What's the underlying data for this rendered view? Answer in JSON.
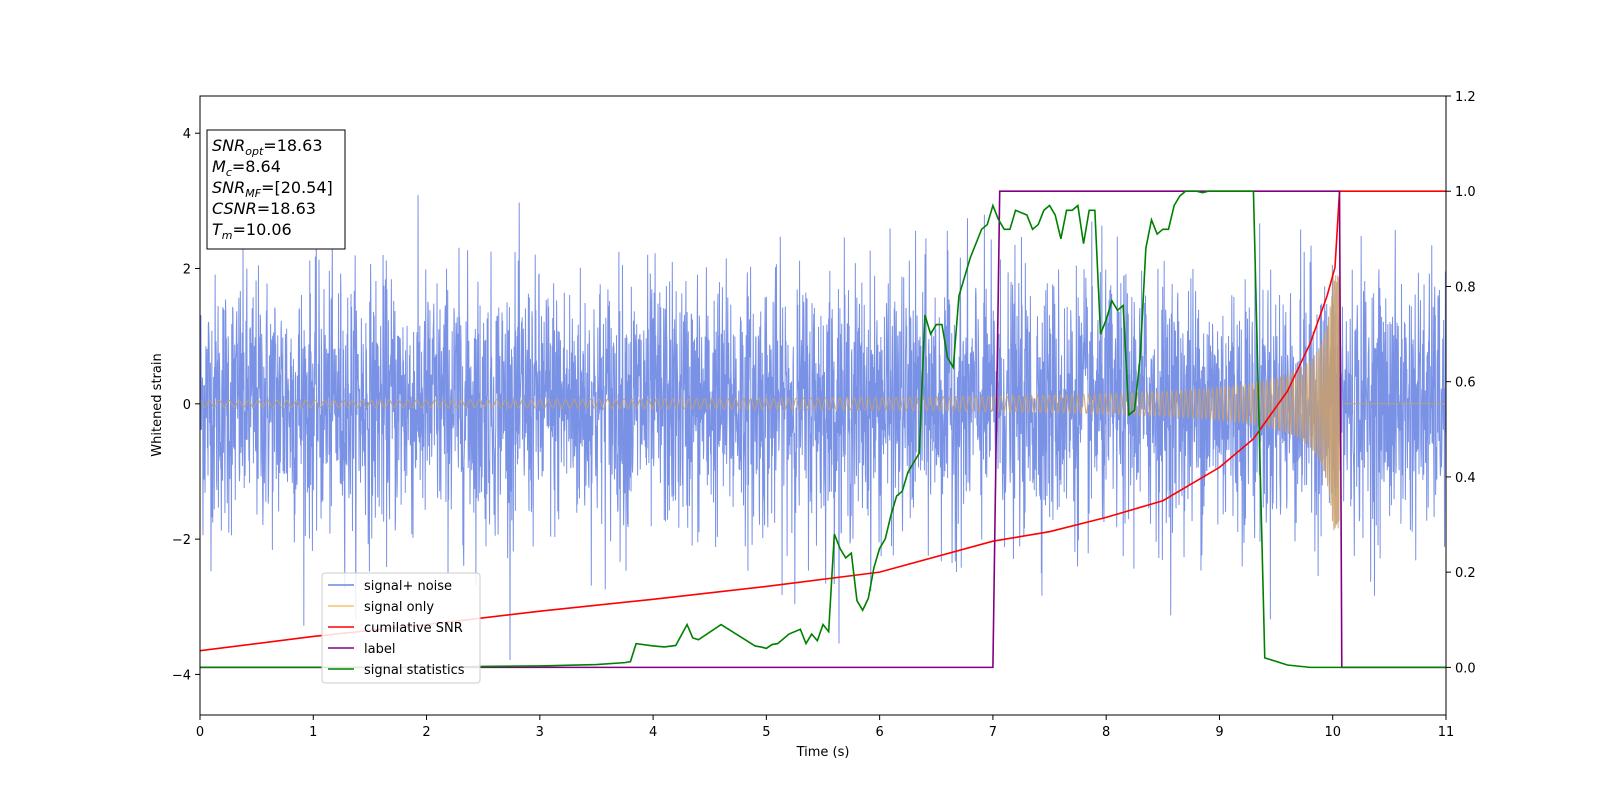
{
  "chart_data": {
    "type": "line",
    "xlabel": "Time (s)",
    "ylabel": "Whitened strain",
    "xlim": [
      0,
      11
    ],
    "ylim": [
      -4.6,
      4.55
    ],
    "y2lim": [
      -0.1,
      1.2
    ],
    "x_ticks": [
      0,
      1,
      2,
      3,
      4,
      5,
      6,
      7,
      8,
      9,
      10,
      11
    ],
    "y_ticks": [
      -4,
      -2,
      0,
      2,
      4
    ],
    "y2_ticks": [
      0.0,
      0.2,
      0.4,
      0.6,
      0.8,
      1.0,
      1.2
    ],
    "legend": {
      "placement": "lower-left",
      "entries": [
        {
          "label": "signal+ noise",
          "color": "#6b86e3"
        },
        {
          "label": "signal only",
          "color": "#f5c06b"
        },
        {
          "label": "cumilative SNR",
          "color": "#ff0000"
        },
        {
          "label": "label",
          "color": "#800080"
        },
        {
          "label": "signal statistics",
          "color": "#008000"
        }
      ]
    },
    "annotation": {
      "lines": [
        {
          "main": "SNR",
          "sub": "opt",
          "rest": "=18.63"
        },
        {
          "main": "M",
          "sub": "c",
          "rest": "=8.64"
        },
        {
          "main": "SNR",
          "sub": "MF",
          "rest": "=[20.54]"
        },
        {
          "main": "CSNR",
          "sub": "",
          "rest": "=18.63"
        },
        {
          "main": "T",
          "sub": "m",
          "rest": "=10.06"
        }
      ]
    },
    "series": [
      {
        "name": "signal+ noise",
        "axis": "left",
        "color": "#6b86e3",
        "style": "noise",
        "x_range": [
          0,
          11
        ],
        "typical_envelope": [
          -2.4,
          2.5
        ],
        "spike_range": [
          -4.2,
          4.15
        ]
      },
      {
        "name": "signal only",
        "axis": "left",
        "color": "#c8a070",
        "style": "chirp",
        "x_range": [
          0,
          10.06
        ],
        "amplitude_at_start": 0.05,
        "peak_amplitude": 1.9,
        "merger_time": 10.06,
        "flat_after": 0
      },
      {
        "name": "cumilative SNR",
        "axis": "right",
        "color": "#ff0000",
        "x": [
          0,
          1,
          2,
          3,
          4,
          5,
          6,
          7,
          7.5,
          8,
          8.5,
          9,
          9.3,
          9.6,
          9.8,
          9.95,
          10.02,
          10.06,
          11
        ],
        "y": [
          0.035,
          0.065,
          0.09,
          0.118,
          0.143,
          0.17,
          0.2,
          0.265,
          0.285,
          0.315,
          0.35,
          0.42,
          0.48,
          0.58,
          0.68,
          0.78,
          0.84,
          1.0,
          1.0
        ]
      },
      {
        "name": "label",
        "axis": "right",
        "color": "#800080",
        "x": [
          0,
          7.0,
          7.06,
          10.06,
          10.08,
          11
        ],
        "y": [
          0,
          0,
          1.0,
          1.0,
          0,
          0
        ]
      },
      {
        "name": "signal statistics",
        "axis": "right",
        "color": "#008000",
        "x": [
          0,
          1,
          2,
          2.5,
          3,
          3.5,
          3.75,
          3.8,
          3.85,
          4,
          4.1,
          4.2,
          4.3,
          4.35,
          4.4,
          4.6,
          4.8,
          4.9,
          4.95,
          5,
          5.05,
          5.1,
          5.2,
          5.3,
          5.35,
          5.4,
          5.45,
          5.5,
          5.55,
          5.6,
          5.65,
          5.7,
          5.75,
          5.8,
          5.85,
          5.9,
          5.95,
          6.0,
          6.05,
          6.1,
          6.15,
          6.2,
          6.25,
          6.3,
          6.35,
          6.4,
          6.45,
          6.5,
          6.55,
          6.6,
          6.65,
          6.7,
          6.8,
          6.9,
          6.95,
          7.0,
          7.05,
          7.1,
          7.15,
          7.2,
          7.3,
          7.35,
          7.4,
          7.45,
          7.5,
          7.55,
          7.6,
          7.65,
          7.7,
          7.75,
          7.8,
          7.85,
          7.9,
          7.95,
          8.0,
          8.05,
          8.1,
          8.15,
          8.2,
          8.25,
          8.3,
          8.35,
          8.4,
          8.45,
          8.5,
          8.55,
          8.6,
          8.65,
          8.7,
          8.75,
          8.8,
          8.85,
          8.9,
          8.95,
          9.0,
          9.1,
          9.2,
          9.3,
          9.4,
          9.6,
          9.8,
          9.95,
          10.0,
          10.05,
          10.1,
          10.15,
          10.2,
          10.3,
          11
        ],
        "y": [
          0.0,
          0.0,
          0.0,
          0.002,
          0.003,
          0.006,
          0.01,
          0.012,
          0.05,
          0.045,
          0.043,
          0.046,
          0.09,
          0.062,
          0.058,
          0.09,
          0.06,
          0.045,
          0.043,
          0.04,
          0.048,
          0.05,
          0.07,
          0.08,
          0.05,
          0.07,
          0.056,
          0.09,
          0.075,
          0.28,
          0.25,
          0.23,
          0.24,
          0.14,
          0.12,
          0.145,
          0.21,
          0.25,
          0.27,
          0.32,
          0.36,
          0.37,
          0.41,
          0.43,
          0.45,
          0.74,
          0.7,
          0.72,
          0.72,
          0.65,
          0.63,
          0.78,
          0.86,
          0.92,
          0.93,
          0.97,
          0.94,
          0.92,
          0.92,
          0.96,
          0.95,
          0.92,
          0.93,
          0.96,
          0.97,
          0.95,
          0.9,
          0.96,
          0.96,
          0.97,
          0.89,
          0.96,
          0.96,
          0.7,
          0.73,
          0.77,
          0.75,
          0.76,
          0.53,
          0.54,
          0.65,
          0.88,
          0.94,
          0.91,
          0.92,
          0.92,
          0.97,
          0.99,
          1.0,
          1.0,
          1.0,
          0.997,
          1.0,
          1.0,
          1.0,
          1.0,
          1.0,
          1.0,
          0.02,
          0.005,
          0.0,
          0.0,
          0.0,
          0.0,
          0.0,
          0.0,
          0.0,
          0.0,
          0.0
        ]
      }
    ]
  }
}
